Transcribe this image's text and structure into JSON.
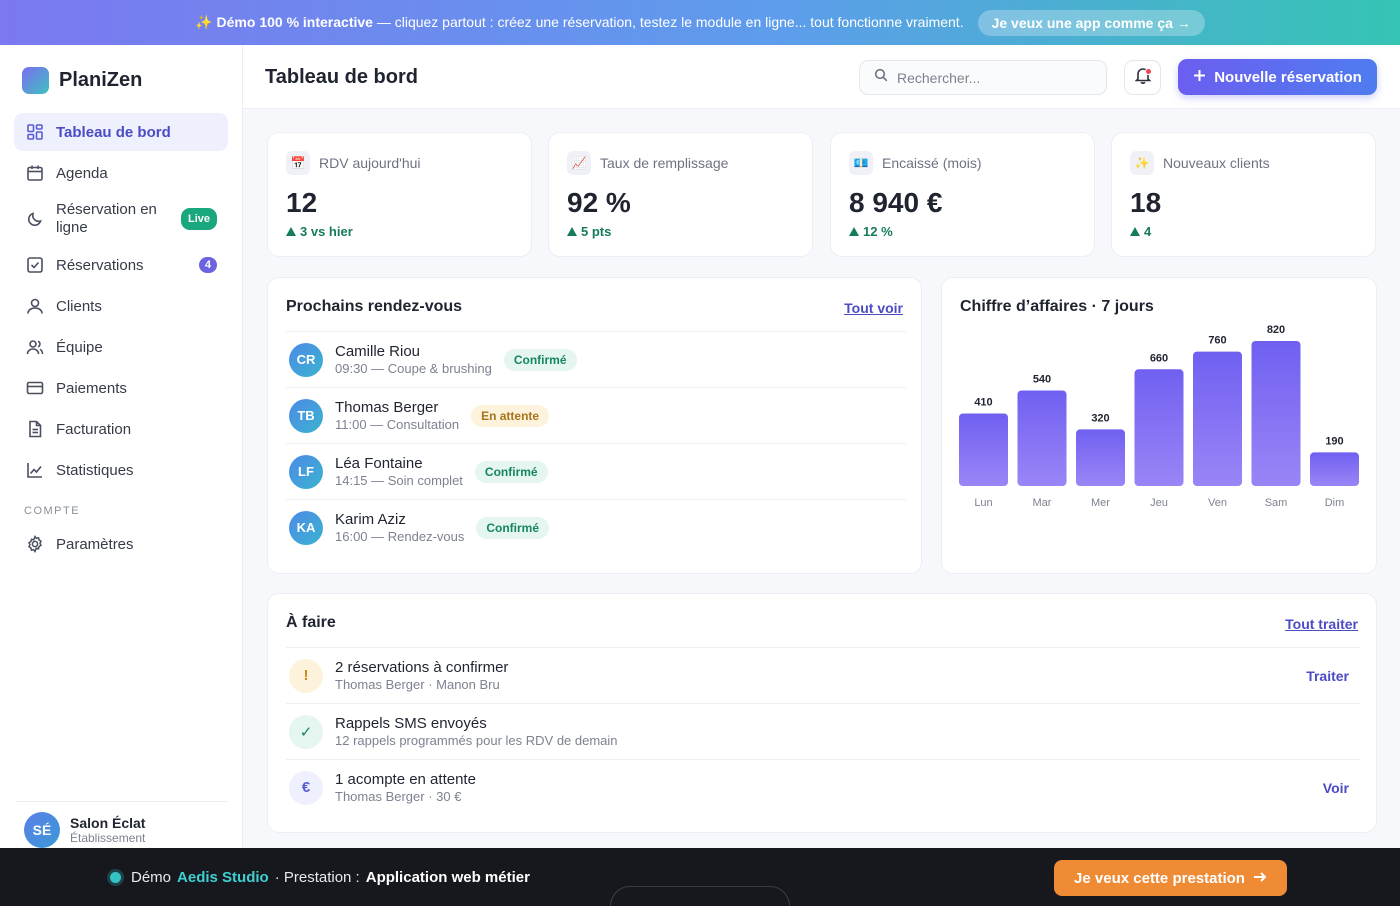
{
  "banner": {
    "emoji": "✨",
    "bold": "Démo 100 % interactive",
    "text": " — cliquez partout : créez une réservation, testez le module en ligne... tout fonctionne vraiment.",
    "button": "Je veux une app comme ça →"
  },
  "brand": {
    "name": "PlaniZen"
  },
  "sidebar": {
    "items": [
      {
        "label": "Tableau de bord",
        "icon": "grid-icon"
      },
      {
        "label": "Agenda",
        "icon": "calendar-icon"
      },
      {
        "label": "Réservation en ligne",
        "icon": "moon-icon",
        "badge": "Live"
      },
      {
        "label": "Réservations",
        "icon": "check-square-icon",
        "badge": "4"
      },
      {
        "label": "Clients",
        "icon": "user-icon"
      },
      {
        "label": "Équipe",
        "icon": "users-icon"
      },
      {
        "label": "Paiements",
        "icon": "credit-card-icon"
      },
      {
        "label": "Facturation",
        "icon": "document-icon"
      },
      {
        "label": "Statistiques",
        "icon": "chart-line-icon"
      }
    ],
    "section_label": "COMPTE",
    "settings_label": "Paramètres",
    "account": {
      "initials": "SÉ",
      "name": "Salon Éclat",
      "role": "Établissement"
    }
  },
  "header": {
    "title": "Tableau de bord",
    "search_placeholder": "Rechercher...",
    "new_button": "Nouvelle réservation"
  },
  "stats": [
    {
      "label": "RDV aujourd'hui",
      "emoji": "📅",
      "value": "12",
      "delta": "3 vs hier"
    },
    {
      "label": "Taux de remplissage",
      "emoji": "📈",
      "value": "92 %",
      "delta": "5 pts"
    },
    {
      "label": "Encaissé (mois)",
      "emoji": "💶",
      "value": "8 940 €",
      "delta": "12 %"
    },
    {
      "label": "Nouveaux clients",
      "emoji": "✨",
      "value": "18",
      "delta": "4"
    }
  ],
  "appointments": {
    "title": "Prochains rendez-vous",
    "link": "Tout voir",
    "items": [
      {
        "initials": "CR",
        "name": "Camille Riou",
        "detail": "09:30 — Coupe & brushing",
        "status": "Confirmé"
      },
      {
        "initials": "TB",
        "name": "Thomas Berger",
        "detail": "11:00 — Consultation",
        "status": "En attente"
      },
      {
        "initials": "LF",
        "name": "Léa Fontaine",
        "detail": "14:15 — Soin complet",
        "status": "Confirmé"
      },
      {
        "initials": "KA",
        "name": "Karim Aziz",
        "detail": "16:00 — Rendez-vous",
        "status": "Confirmé"
      }
    ]
  },
  "revenue": {
    "title": "Chiffre d’affaires · 7 jours"
  },
  "chart_data": {
    "type": "bar",
    "title": "Chiffre d’affaires · 7 jours",
    "categories": [
      "Lun",
      "Mar",
      "Mer",
      "Jeu",
      "Ven",
      "Sam",
      "Dim"
    ],
    "values": [
      410,
      540,
      320,
      660,
      760,
      820,
      190
    ],
    "ylim": [
      0,
      820
    ],
    "grid": false,
    "bar_gradient": [
      "#8d7af5",
      "#6a5cf0"
    ]
  },
  "todo": {
    "title": "À faire",
    "link": "Tout traiter",
    "items": [
      {
        "icon": "!",
        "title": "2 réservations à confirmer",
        "subtitle": "Thomas Berger · Manon Bru",
        "action": "Traiter"
      },
      {
        "icon": "✓",
        "title": "Rappels SMS envoyés",
        "subtitle": "12 rappels programmés pour les RDV de demain",
        "action": ""
      },
      {
        "icon": "€",
        "title": "1 acompte en attente",
        "subtitle": "Thomas Berger · 30 €",
        "action": "Voir"
      }
    ]
  },
  "footer": {
    "prefix": "Démo",
    "studio": "Aedis Studio",
    "middle": "· Prestation :",
    "service": "Application web métier",
    "cta": "Je veux cette prestation"
  },
  "colors": {
    "accent": "#5a5bd6",
    "success": "#168565",
    "warning": "#a8741a",
    "cta": "#ef8a35"
  }
}
